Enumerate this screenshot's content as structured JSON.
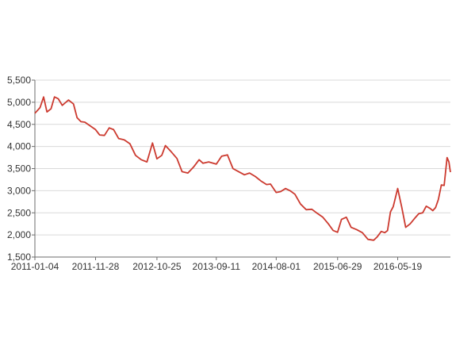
{
  "colors": {
    "line": "#cc3a2f",
    "grid": "#d9d9d9",
    "axis": "#6b6b6b",
    "text": "#333333",
    "background": "#ffffff"
  },
  "chart_data": {
    "type": "line",
    "title": "",
    "xlabel": "",
    "ylabel": "",
    "ylim": [
      1500,
      5500
    ],
    "grid": "horizontal",
    "legend": "none",
    "x_tick_labels": [
      "2011-01-04",
      "2011-11-28",
      "2012-10-25",
      "2013-09-11",
      "2014-08-01",
      "2015-06-29",
      "2016-05-19"
    ],
    "y_ticks": [
      1500,
      2000,
      2500,
      3000,
      3500,
      4000,
      4500,
      5000,
      5500
    ],
    "y_tick_labels": [
      "1,500",
      "2,000",
      "2,500",
      "3,000",
      "3,500",
      "4,000",
      "4,500",
      "5,000",
      "5,500"
    ],
    "x_range": [
      "2011-01-04",
      "2017-02-28"
    ],
    "series": [
      {
        "name": "",
        "x": [
          "2011-01-04",
          "2011-02-01",
          "2011-02-20",
          "2011-03-10",
          "2011-04-01",
          "2011-04-20",
          "2011-05-10",
          "2011-06-01",
          "2011-06-15",
          "2011-07-05",
          "2011-08-01",
          "2011-08-20",
          "2011-09-10",
          "2011-10-01",
          "2011-10-25",
          "2011-11-28",
          "2011-12-20",
          "2012-01-15",
          "2012-02-10",
          "2012-03-05",
          "2012-04-01",
          "2012-05-01",
          "2012-06-01",
          "2012-07-01",
          "2012-08-01",
          "2012-09-01",
          "2012-10-01",
          "2012-10-25",
          "2012-11-20",
          "2012-12-10",
          "2013-01-10",
          "2013-02-10",
          "2013-03-10",
          "2013-04-10",
          "2013-05-10",
          "2013-06-10",
          "2013-07-01",
          "2013-08-01",
          "2013-09-11",
          "2013-10-10",
          "2013-11-10",
          "2013-12-10",
          "2014-01-10",
          "2014-02-10",
          "2014-03-10",
          "2014-04-10",
          "2014-05-10",
          "2014-06-10",
          "2014-07-01",
          "2014-08-01",
          "2014-08-25",
          "2014-09-20",
          "2014-10-15",
          "2014-11-10",
          "2014-12-10",
          "2015-01-10",
          "2015-02-10",
          "2015-03-10",
          "2015-04-10",
          "2015-05-10",
          "2015-06-05",
          "2015-06-29",
          "2015-07-20",
          "2015-08-15",
          "2015-09-10",
          "2015-10-10",
          "2015-11-10",
          "2015-12-10",
          "2016-01-10",
          "2016-01-28",
          "2016-02-20",
          "2016-03-10",
          "2016-03-25",
          "2016-04-10",
          "2016-04-25",
          "2016-05-19",
          "2016-06-10",
          "2016-07-01",
          "2016-07-25",
          "2016-08-20",
          "2016-09-10",
          "2016-10-01",
          "2016-10-20",
          "2016-11-10",
          "2016-11-25",
          "2016-12-10",
          "2016-12-25",
          "2017-01-10",
          "2017-01-25",
          "2017-02-10",
          "2017-02-20",
          "2017-02-28"
        ],
        "y": [
          4750,
          4880,
          5120,
          4780,
          4850,
          5120,
          5080,
          4930,
          4980,
          5050,
          4960,
          4650,
          4560,
          4550,
          4480,
          4380,
          4260,
          4250,
          4420,
          4380,
          4180,
          4150,
          4060,
          3800,
          3700,
          3650,
          4080,
          3720,
          3800,
          4020,
          3880,
          3730,
          3430,
          3400,
          3530,
          3700,
          3620,
          3650,
          3600,
          3780,
          3810,
          3500,
          3430,
          3360,
          3400,
          3320,
          3220,
          3140,
          3150,
          2960,
          2980,
          3050,
          3000,
          2920,
          2700,
          2570,
          2580,
          2490,
          2400,
          2250,
          2100,
          2060,
          2350,
          2400,
          2170,
          2120,
          2050,
          1900,
          1880,
          1950,
          2080,
          2050,
          2100,
          2520,
          2640,
          3050,
          2620,
          2170,
          2250,
          2380,
          2480,
          2500,
          2650,
          2600,
          2550,
          2620,
          2800,
          3130,
          3120,
          3750,
          3650,
          3420
        ]
      }
    ]
  }
}
